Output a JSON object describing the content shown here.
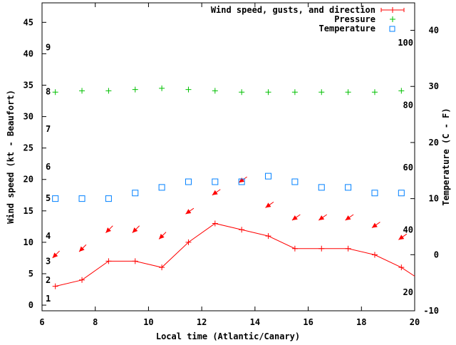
{
  "chart_data": {
    "type": "line",
    "title": "",
    "xlabel": "Local time (Atlantic/Canary)",
    "ylabel": "Wind speed (kt - Beaufort)",
    "y2label": "Temperature (C - F)",
    "xlim": [
      6,
      20
    ],
    "ylim": [
      -0.9,
      48.1
    ],
    "y2lim": [
      -10,
      44.9
    ],
    "x_ticks": [
      6,
      8,
      10,
      12,
      14,
      16,
      18,
      20
    ],
    "y_ticks": [
      0,
      5,
      10,
      15,
      20,
      25,
      30,
      35,
      40,
      45
    ],
    "y2_ticks": [
      -10,
      0,
      10,
      20,
      30,
      40
    ],
    "beaufort_labels": [
      {
        "label": "1",
        "kt": 1
      },
      {
        "label": "2",
        "kt": 4
      },
      {
        "label": "3",
        "kt": 7
      },
      {
        "label": "4",
        "kt": 11
      },
      {
        "label": "5",
        "kt": 17
      },
      {
        "label": "6",
        "kt": 22
      },
      {
        "label": "7",
        "kt": 28
      },
      {
        "label": "8",
        "kt": 34
      },
      {
        "label": "9",
        "kt": 41
      }
    ],
    "fahrenheit_labels": [
      {
        "label": "20",
        "f": 20
      },
      {
        "label": "40",
        "f": 40
      },
      {
        "label": "60",
        "f": 60
      },
      {
        "label": "80",
        "f": 80
      },
      {
        "label": "100",
        "f": 100
      }
    ],
    "legend": {
      "placement": "top-right",
      "entries": [
        "Wind speed, gusts, and direction",
        "Pressure",
        "Temperature"
      ]
    },
    "x": [
      6.5,
      7.5,
      8.5,
      9.5,
      10.5,
      11.5,
      12.5,
      13.5,
      14.5,
      15.5,
      16.5,
      17.5,
      18.5,
      19.5
    ],
    "series": [
      {
        "name": "Wind speed, gusts, and direction",
        "color": "#ff0000",
        "values": [
          3,
          4,
          7,
          7,
          6,
          10,
          13,
          12,
          11,
          9,
          9,
          9,
          8,
          6
        ],
        "line_end": {
          "x": 20,
          "y": 4.6
        },
        "gusts": [
          7.5,
          8.5,
          11.5,
          11.5,
          10.5,
          14.5,
          17.5,
          19.5,
          15.5,
          13.5,
          13.5,
          13.5,
          12.3,
          10.4
        ],
        "direction_deg": [
          135,
          135,
          135,
          135,
          135,
          125,
          125,
          125,
          125,
          125,
          125,
          125,
          125,
          125
        ]
      },
      {
        "name": "Pressure",
        "color": "#00c000",
        "values": [
          33.9,
          34.1,
          34.1,
          34.3,
          34.5,
          34.3,
          34.1,
          33.9,
          33.9,
          33.9,
          33.9,
          33.9,
          33.9,
          34.1
        ]
      },
      {
        "name": "Temperature",
        "color": "#0080ff",
        "axis": "y2",
        "values": [
          10,
          10,
          10,
          11,
          12,
          13,
          13,
          13,
          14,
          13,
          12,
          12,
          11,
          11
        ]
      }
    ]
  }
}
